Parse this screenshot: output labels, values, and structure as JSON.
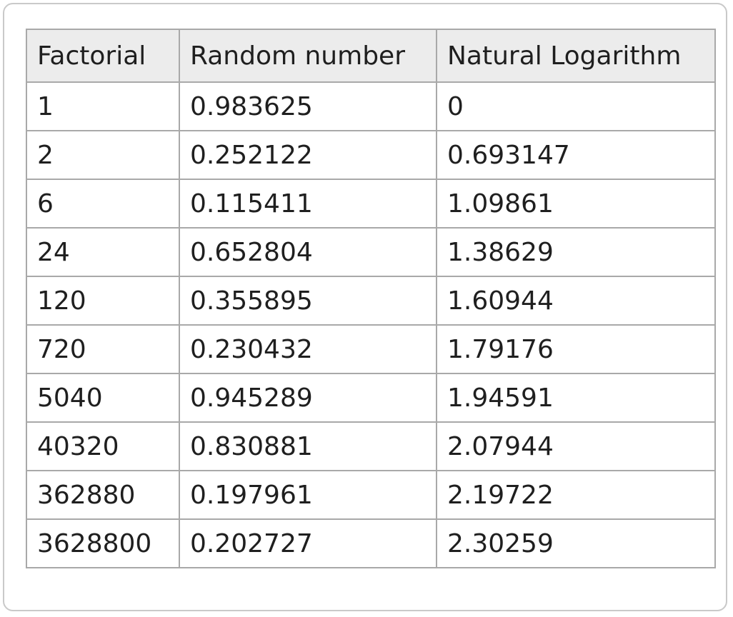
{
  "table": {
    "headers": [
      "Factorial",
      "Random number",
      "Natural Logarithm"
    ],
    "rows": [
      [
        "1",
        "0.983625",
        "0"
      ],
      [
        "2",
        "0.252122",
        "0.693147"
      ],
      [
        "6",
        "0.115411",
        "1.09861"
      ],
      [
        "24",
        "0.652804",
        "1.38629"
      ],
      [
        "120",
        "0.355895",
        "1.60944"
      ],
      [
        "720",
        "0.230432",
        "1.79176"
      ],
      [
        "5040",
        "0.945289",
        "1.94591"
      ],
      [
        "40320",
        "0.830881",
        "2.07944"
      ],
      [
        "362880",
        "0.197961",
        "2.19722"
      ],
      [
        "3628800",
        "0.202727",
        "2.30259"
      ]
    ]
  }
}
